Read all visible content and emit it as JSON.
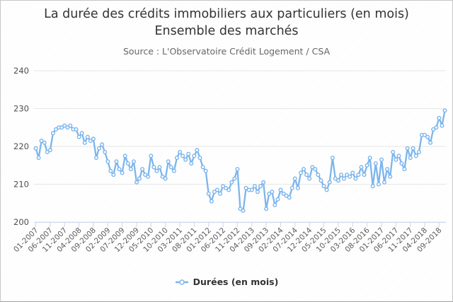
{
  "window": {
    "background": "#ffffff",
    "border_color": "#c6c6c6"
  },
  "chart_data": {
    "type": "line",
    "title": "La durée des crédits immobiliers aux particuliers (en mois)",
    "title_line2": "Ensemble des marchés",
    "subtitle": "Source : L'Observatoire Crédit Logement / CSA",
    "xlabel": "",
    "ylabel": "",
    "ylim": [
      200,
      240
    ],
    "yticks": [
      200,
      210,
      220,
      230,
      240
    ],
    "grid": true,
    "legend_position": "bottom",
    "x_tick_every": 5,
    "x_tick_labels": [
      "01-2007",
      "06-2007",
      "11-2007",
      "04-2008",
      "09-2008",
      "02-2009",
      "07-2009",
      "12-2009",
      "05-2010",
      "10-2010",
      "03-2011",
      "08-2011",
      "01-2012",
      "06-2012",
      "11-2012",
      "04-2013",
      "09-2013",
      "02-2014",
      "07-2014",
      "12-2014",
      "05-2015",
      "10-2015",
      "03-2016",
      "08-2016",
      "01-2017",
      "06-2017",
      "11-2017",
      "04-2018",
      "09-2018"
    ],
    "series": [
      {
        "name": "Durées (en mois)",
        "color": "#7cb5ec",
        "marker": "circle-open",
        "values": [
          219.5,
          217,
          221.5,
          221,
          218.5,
          219,
          223.5,
          224.5,
          225,
          225,
          225.5,
          225,
          225.5,
          224.5,
          224.5,
          222.5,
          223.5,
          221,
          222.5,
          221.5,
          222,
          217,
          219.5,
          220.5,
          218.5,
          216,
          213.5,
          212.5,
          216,
          214,
          213,
          217.5,
          215.5,
          214,
          216,
          210.5,
          211.5,
          214,
          212.5,
          212,
          217.5,
          214.5,
          213.5,
          214.5,
          212,
          211.5,
          216,
          214.5,
          213.5,
          217,
          218.5,
          217.5,
          216.5,
          218,
          215.5,
          217.5,
          219,
          217,
          214.5,
          213.5,
          207.5,
          205.5,
          208,
          208.5,
          207.5,
          209.5,
          209,
          208.5,
          210.5,
          211.5,
          214,
          203.5,
          203,
          209,
          208.5,
          208.5,
          209.5,
          208,
          209.5,
          210.5,
          203.5,
          207.5,
          208,
          204.5,
          206,
          208.5,
          207.5,
          207,
          206.5,
          209,
          211.5,
          209,
          213,
          214,
          212.5,
          211.5,
          214.5,
          214,
          212.5,
          211,
          209.5,
          208.5,
          210.5,
          217,
          211.5,
          211,
          212.5,
          211.5,
          212.5,
          212,
          213,
          211.5,
          212.5,
          214.5,
          212.5,
          215,
          217,
          209.5,
          215.5,
          210,
          216.5,
          210.5,
          214,
          212,
          218.5,
          216.5,
          217.5,
          215.5,
          214,
          219.5,
          217,
          219.5,
          217.5,
          218.5,
          223,
          223,
          222.5,
          221,
          224.5,
          225,
          227.5,
          225.5,
          229.5
        ]
      }
    ],
    "colors": {
      "line": "#7cb5ec",
      "marker_fill": "#ffffff",
      "grid": "#e6e6e6",
      "axis": "#ccd6eb",
      "title": "#333333",
      "subtitle": "#666666",
      "axis_labels": "#5a5a5a"
    },
    "legend": [
      {
        "name": "Durées (en mois)",
        "color": "#7cb5ec"
      }
    ]
  }
}
